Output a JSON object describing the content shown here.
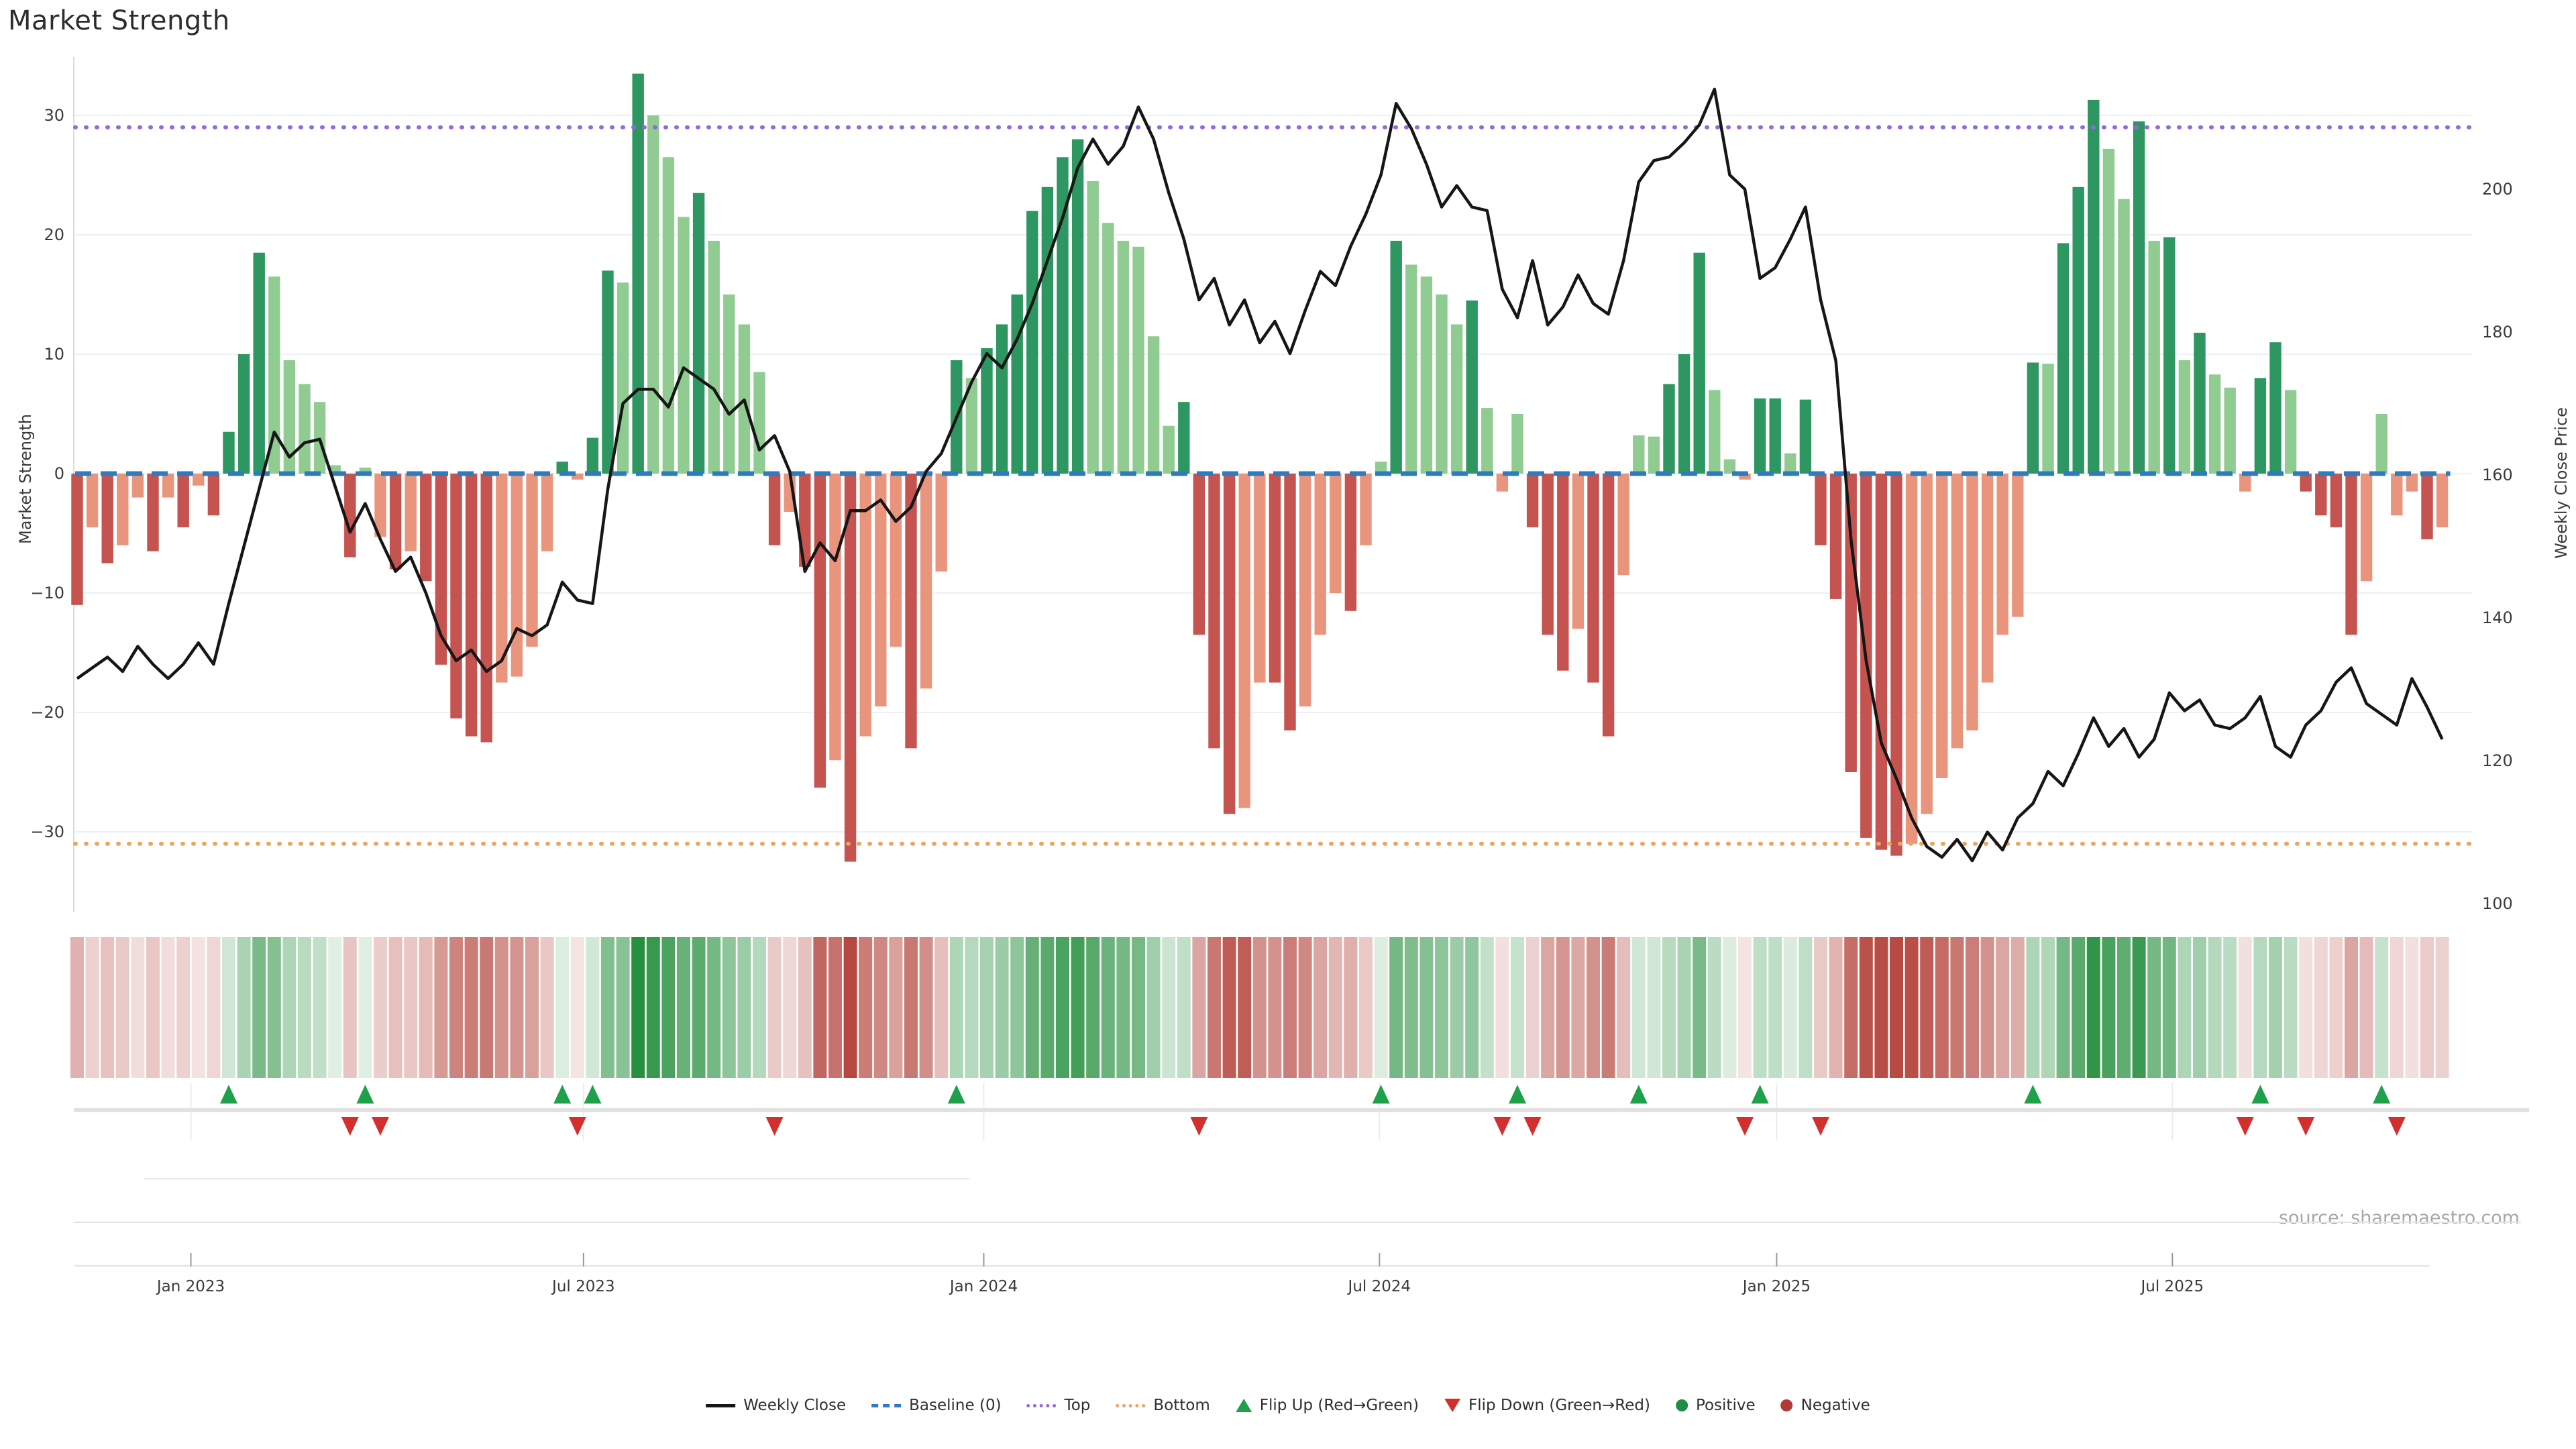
{
  "app": {
    "title": "Market Strength"
  },
  "axes": {
    "left_label": "Market Strength",
    "right_label": "Weekly Close Price",
    "left_ticks": [
      30,
      20,
      10,
      0,
      -10,
      -20,
      -30
    ],
    "right_ticks": [
      200,
      180,
      160,
      140,
      120,
      100
    ],
    "x_ticks": [
      {
        "label": "Jan 2023",
        "week": 7.5
      },
      {
        "label": "Jul 2023",
        "week": 33.4
      },
      {
        "label": "Jan 2024",
        "week": 59.8
      },
      {
        "label": "Jul 2024",
        "week": 85.9
      },
      {
        "label": "Jan 2025",
        "week": 112.1
      },
      {
        "label": "Jul 2025",
        "week": 138.2
      }
    ]
  },
  "source": {
    "text": "source: sharemaestro.com"
  },
  "legend": {
    "items": [
      {
        "label": "Weekly Close",
        "type": "line"
      },
      {
        "label": "Baseline (0)",
        "type": "dash"
      },
      {
        "label": "Top",
        "type": "dot-top"
      },
      {
        "label": "Bottom",
        "type": "dot-bot"
      },
      {
        "label": "Flip Up (Red→Green)",
        "type": "tri-up"
      },
      {
        "label": "Flip Down (Green→Red)",
        "type": "tri-dn"
      },
      {
        "label": "Positive",
        "type": "dot-pos"
      },
      {
        "label": "Negative",
        "type": "dot-neg"
      }
    ]
  },
  "colors": {
    "bar_positive_rising": "#2e9660",
    "bar_positive_falling": "#90cb91",
    "bar_negative_falling": "#c5534f",
    "bar_negative_rising": "#e9957d",
    "price_line": "#161616",
    "baseline": "#2e7bbf",
    "top_line": "#9467e0",
    "bottom_line": "#efa35c",
    "flip_up": "#1fa14b",
    "flip_down": "#d32f2f",
    "positive_dot": "#1e8c45",
    "negative_dot": "#b03a36",
    "heat_pos": "#27903f",
    "heat_neg": "#b5463e",
    "grid": "#eef0f5",
    "tick_text": "#3a3a3a"
  },
  "chart_data": {
    "type": "bar+line",
    "title": "Market Strength",
    "x_unit": "week",
    "x_range_note": "157 weekly observations, Nov 2022 - Nov 2025",
    "baseline": 0,
    "top_threshold": 29,
    "bottom_threshold": -31,
    "left_ylim": [
      -34,
      34.5
    ],
    "right_ylim": [
      99,
      218
    ],
    "series": [
      {
        "name": "Market Strength",
        "type": "bar",
        "values": [
          -11,
          -4.5,
          -7.5,
          -6,
          -2,
          -6.5,
          -2,
          -4.5,
          -1,
          -3.5,
          3.5,
          10,
          18.5,
          16.5,
          9.5,
          7.5,
          6,
          0.7,
          -7,
          0.5,
          -5.3,
          -8,
          -6.5,
          -9,
          -16,
          -20.5,
          -22,
          -22.5,
          -17.5,
          -17,
          -14.5,
          -6.5,
          1,
          -0.5,
          3,
          17,
          16,
          33.5,
          30,
          26.5,
          21.5,
          23.5,
          19.5,
          15,
          12.5,
          8.5,
          -6,
          -3.2,
          -7.8,
          -26.3,
          -24,
          -32.5,
          -22,
          -19.5,
          -14.5,
          -23,
          -18,
          -8.2,
          9.5,
          8,
          10.5,
          12.5,
          15,
          22,
          24,
          26.5,
          28,
          24.5,
          21,
          19.5,
          19,
          11.5,
          4,
          6,
          -13.5,
          -23,
          -28.5,
          -28,
          -17.5,
          -17.5,
          -21.5,
          -19.5,
          -13.5,
          -10,
          -11.5,
          -6,
          1,
          19.5,
          17.5,
          16.5,
          15,
          12.5,
          14.5,
          5.5,
          -1.5,
          5,
          -4.5,
          -13.5,
          -16.5,
          -13,
          -17.5,
          -22,
          -8.5,
          3.2,
          3.1,
          7.5,
          10,
          18.5,
          7,
          1.2,
          -0.5,
          6.3,
          6.3,
          1.7,
          6.2,
          -6,
          -10.5,
          -25,
          -30.5,
          -31.5,
          -32,
          -31,
          -28.5,
          -25.5,
          -23,
          -21.5,
          -17.5,
          -13.5,
          -12,
          9.3,
          9.2,
          19.3,
          24,
          31.3,
          27.2,
          23,
          29.5,
          19.5,
          19.8,
          9.5,
          11.8,
          8.3,
          7.2,
          -1.5,
          8,
          11,
          7,
          -1.5,
          -3.5,
          -4.5,
          -13.5,
          -9,
          5,
          -3.5,
          -1.5,
          -5.5,
          -4.5
        ]
      },
      {
        "name": "Weekly Close",
        "type": "line",
        "values": [
          131.5,
          133,
          134.5,
          132.5,
          136,
          133.5,
          131.5,
          133.5,
          136.5,
          133.5,
          142,
          150,
          158,
          166,
          162.5,
          164.5,
          165,
          158.5,
          152,
          156,
          151,
          146.5,
          148.5,
          143.5,
          137.5,
          134,
          135.5,
          132.5,
          134,
          138.5,
          137.5,
          139,
          145,
          142.5,
          142,
          158,
          170,
          172,
          172,
          169.5,
          175,
          173.5,
          172,
          168.5,
          170.5,
          163.5,
          165.5,
          160.5,
          146.5,
          150.5,
          148,
          155,
          155,
          156.5,
          153.5,
          155.5,
          160.5,
          163,
          168,
          173,
          177,
          175,
          179,
          184,
          190,
          196,
          203,
          207,
          203.5,
          206,
          211.5,
          207,
          199.5,
          193,
          184.5,
          187.5,
          181,
          184.5,
          178.5,
          181.5,
          177,
          183,
          188.5,
          186.5,
          192,
          196.5,
          202,
          212,
          208.5,
          203.5,
          197.5,
          200.5,
          197.5,
          197,
          186,
          182,
          190,
          181,
          183.5,
          188,
          184,
          182.5,
          190,
          201,
          204,
          204.5,
          206.5,
          209,
          214,
          202,
          200,
          187.5,
          189,
          193,
          197.5,
          184.5,
          176,
          151,
          134,
          122.5,
          117.5,
          112,
          108,
          106.5,
          109,
          106,
          110,
          107.5,
          112,
          114,
          118.5,
          116.5,
          121,
          126,
          122,
          124.5,
          120.5,
          123,
          129.5,
          127,
          128.5,
          125,
          124.5,
          126,
          129,
          122,
          120.5,
          125,
          127,
          131,
          133,
          128,
          126.5,
          125,
          131.5,
          127.5,
          123
        ]
      }
    ],
    "flip_up_weeks": [
      10,
      19,
      32,
      34,
      58,
      86,
      95,
      103,
      111,
      129,
      144,
      152
    ],
    "flip_down_weeks": [
      18,
      20,
      33,
      46,
      74,
      94,
      96,
      110,
      115,
      143,
      147,
      153
    ],
    "heatmap": "same weekly strength values rendered as a red-green intensity strip",
    "grid": "horizontal gridlines at left-axis ticks; vertical gridlines in marker band at month ticks",
    "legend_position": "bottom center"
  }
}
